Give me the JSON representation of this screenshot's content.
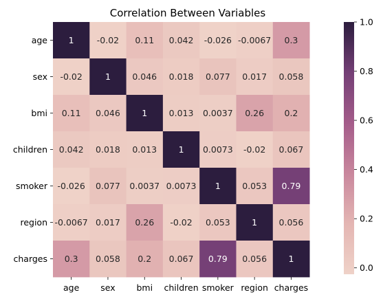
{
  "chart_data": {
    "type": "heatmap",
    "title": "Correlation Between Variables",
    "xlabel": "",
    "ylabel": "",
    "row_labels": [
      "age",
      "sex",
      "bmi",
      "children",
      "smoker",
      "region",
      "charges"
    ],
    "col_labels": [
      "age",
      "sex",
      "bmi",
      "children",
      "smoker",
      "region",
      "charges"
    ],
    "values": [
      [
        1,
        -0.02,
        0.11,
        0.042,
        -0.026,
        -0.0067,
        0.3
      ],
      [
        -0.02,
        1,
        0.046,
        0.018,
        0.077,
        0.017,
        0.058
      ],
      [
        0.11,
        0.046,
        1,
        0.013,
        0.0037,
        0.26,
        0.2
      ],
      [
        0.042,
        0.018,
        0.013,
        1,
        0.0073,
        -0.02,
        0.067
      ],
      [
        -0.026,
        0.077,
        0.0037,
        0.0073,
        1,
        0.053,
        0.79
      ],
      [
        -0.0067,
        0.017,
        0.26,
        -0.02,
        0.053,
        1,
        0.056
      ],
      [
        0.3,
        0.058,
        0.2,
        0.067,
        0.79,
        0.056,
        1
      ]
    ],
    "value_labels": [
      [
        "1",
        "-0.02",
        "0.11",
        "0.042",
        "-0.026",
        "-0.0067",
        "0.3"
      ],
      [
        "-0.02",
        "1",
        "0.046",
        "0.018",
        "0.077",
        "0.017",
        "0.058"
      ],
      [
        "0.11",
        "0.046",
        "1",
        "0.013",
        "0.0037",
        "0.26",
        "0.2"
      ],
      [
        "0.042",
        "0.018",
        "0.013",
        "1",
        "0.0073",
        "-0.02",
        "0.067"
      ],
      [
        "-0.026",
        "0.077",
        "0.0037",
        "0.0073",
        "1",
        "0.053",
        "0.79"
      ],
      [
        "-0.0067",
        "0.017",
        "0.26",
        "-0.02",
        "0.053",
        "1",
        "0.056"
      ],
      [
        "0.3",
        "0.058",
        "0.2",
        "0.067",
        "0.79",
        "0.056",
        "1"
      ]
    ],
    "colorbar": {
      "range": [
        -0.026,
        1
      ],
      "ticks": [
        0.0,
        0.2,
        0.4,
        0.6,
        0.8,
        1.0
      ],
      "tick_labels": [
        "0.0",
        "0.2",
        "0.4",
        "0.6",
        "0.8",
        "1.0"
      ]
    },
    "colormap_stops": [
      "#efd2c8",
      "#e4b6b3",
      "#c9879d",
      "#a45c8a",
      "#743f76",
      "#2c1d3e"
    ],
    "text_colors": {
      "light_bg": "#262626",
      "dark_bg": "#ffffff"
    }
  }
}
